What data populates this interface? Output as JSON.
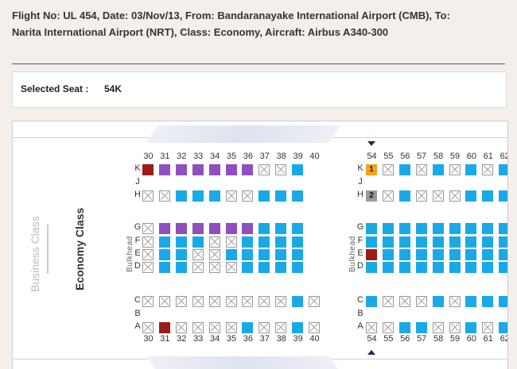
{
  "header": {
    "flight_line1": "Flight No: UL 454,   Date: 03/Nov/13,   From: Bandaranayake International Airport (CMB),   To:",
    "flight_line2": "Narita International Airport (NRT),   Class:   Economy,   Aircraft:   Airbus A340-300"
  },
  "selected": {
    "label": "Selected Seat :",
    "value": "54K"
  },
  "cabin": {
    "business_label": "Business Class",
    "economy_label": "Economy Class",
    "bulkhead_label": "Bulkhead"
  },
  "left_block": {
    "columns": [
      "30",
      "31",
      "32",
      "33",
      "34",
      "35",
      "36",
      "37",
      "38",
      "39",
      "40"
    ],
    "rows": {
      "K": [
        "red",
        "purple",
        "purple",
        "purple",
        "purple",
        "purple",
        "purple",
        "occ",
        "occ",
        "avail",
        ""
      ],
      "J": [],
      "H": [
        "occ",
        "occ",
        "avail",
        "avail",
        "avail",
        "occ",
        "occ",
        "avail",
        "avail",
        "avail",
        ""
      ],
      "G": [
        "occ",
        "purple",
        "purple",
        "purple",
        "purple",
        "purple",
        "purple",
        "avail",
        "avail",
        "avail",
        ""
      ],
      "F": [
        "occ",
        "avail",
        "avail",
        "avail",
        "occ",
        "occ",
        "avail",
        "avail",
        "avail",
        "avail",
        ""
      ],
      "E": [
        "occ",
        "avail",
        "avail",
        "occ",
        "occ",
        "avail",
        "avail",
        "avail",
        "avail",
        "avail",
        ""
      ],
      "D": [
        "occ",
        "avail",
        "avail",
        "occ",
        "occ",
        "occ",
        "avail",
        "avail",
        "avail",
        "avail",
        ""
      ],
      "C": [
        "occ",
        "occ",
        "occ",
        "occ",
        "occ",
        "occ",
        "occ",
        "occ",
        "occ",
        "avail",
        "occ"
      ],
      "B": [],
      "A": [
        "occ",
        "red",
        "occ",
        "occ",
        "occ",
        "occ",
        "avail",
        "occ",
        "occ",
        "avail",
        "occ"
      ]
    }
  },
  "right_block": {
    "columns": [
      "54",
      "55",
      "56",
      "57",
      "58",
      "59",
      "60",
      "61",
      "62"
    ],
    "rows": {
      "K": [
        "orange:1",
        "occ",
        "avail",
        "occ",
        "avail",
        "occ",
        "avail",
        "occ",
        "avail"
      ],
      "J": [],
      "H": [
        "grey:2",
        "occ",
        "avail",
        "occ",
        "occ",
        "occ",
        "avail",
        "avail",
        "avail"
      ],
      "G": [
        "avail",
        "avail",
        "avail",
        "avail",
        "avail",
        "avail",
        "avail",
        "avail",
        "avail"
      ],
      "F": [
        "avail",
        "avail",
        "avail",
        "avail",
        "avail",
        "avail",
        "avail",
        "avail",
        "avail"
      ],
      "E": [
        "red",
        "avail",
        "avail",
        "avail",
        "avail",
        "avail",
        "avail",
        "avail",
        "avail"
      ],
      "D": [
        "avail",
        "avail",
        "avail",
        "avail",
        "avail",
        "avail",
        "avail",
        "avail",
        "avail"
      ],
      "C": [
        "avail",
        "occ",
        "occ",
        "occ",
        "avail",
        "occ",
        "avail",
        "avail",
        "avail"
      ],
      "B": [],
      "A": [
        "occ",
        "occ",
        "avail",
        "avail",
        "occ",
        "occ",
        "avail",
        "occ",
        "avail"
      ]
    }
  }
}
